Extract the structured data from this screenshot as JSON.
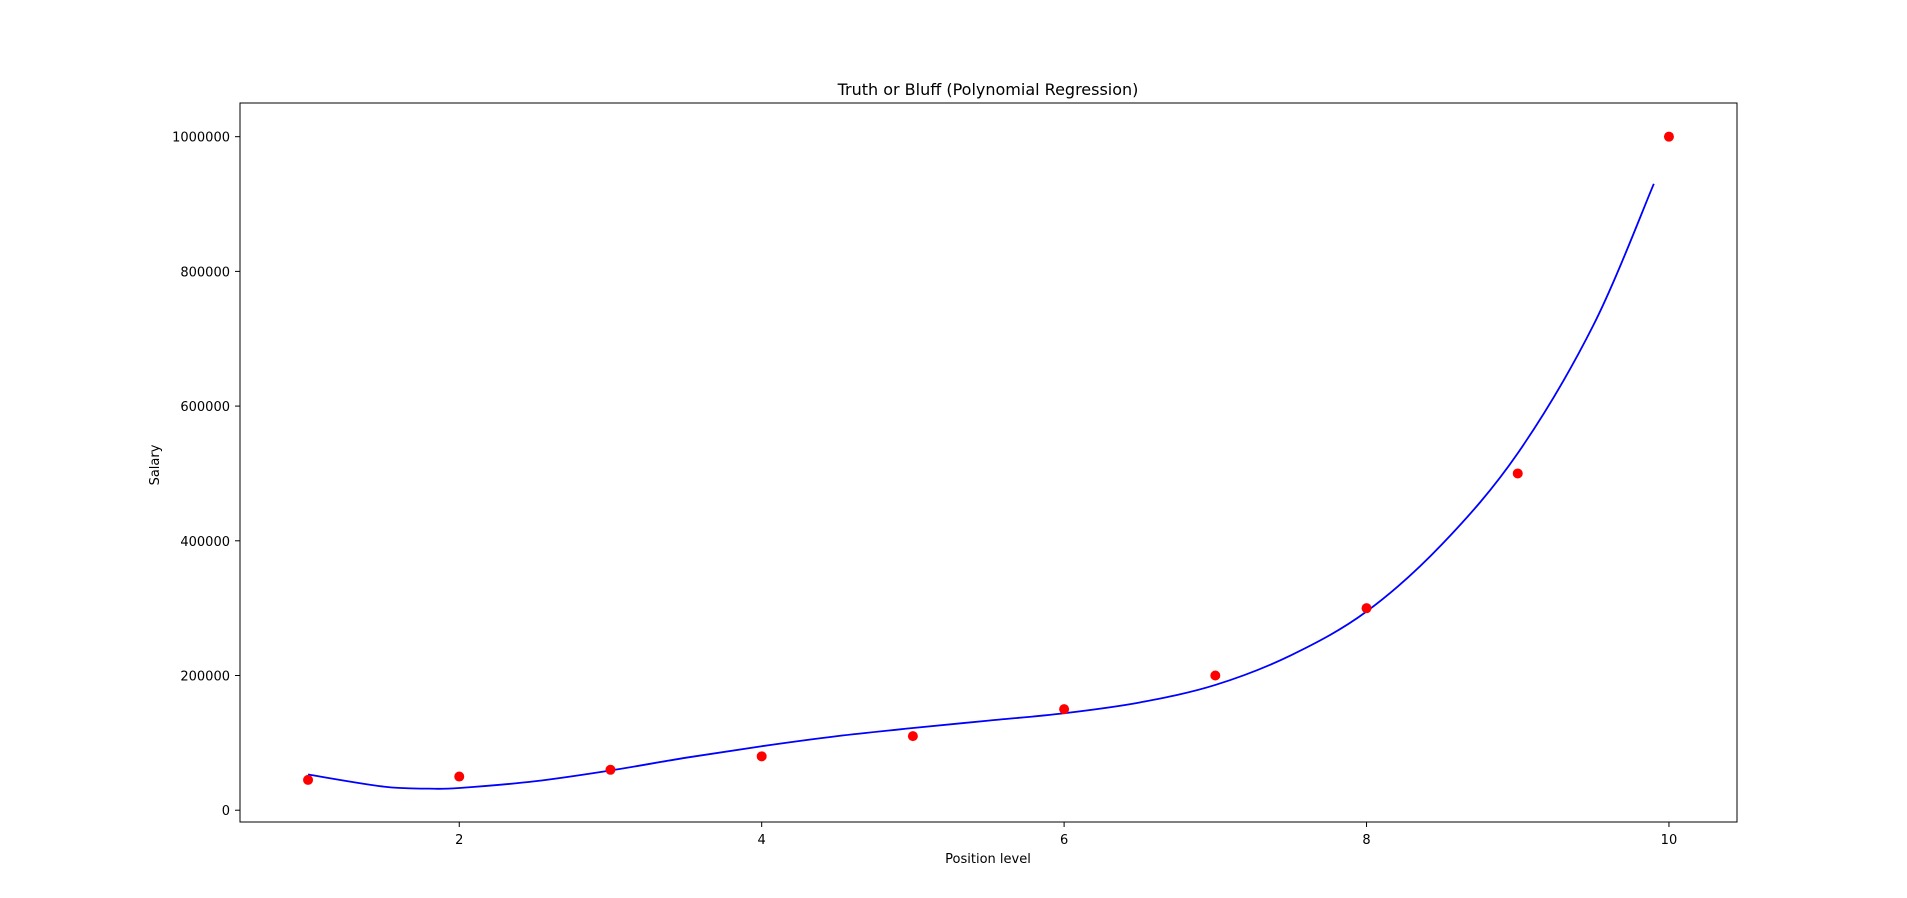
{
  "chart_data": {
    "type": "scatter",
    "title": "Truth or Bluff (Polynomial Regression)",
    "xlabel": "Position level",
    "ylabel": "Salary",
    "xlim": [
      0.55,
      10.45
    ],
    "ylim": [
      -17500,
      1050000
    ],
    "x_ticks": [
      2,
      4,
      6,
      8,
      10
    ],
    "y_ticks": [
      0,
      200000,
      400000,
      600000,
      800000,
      1000000
    ],
    "grid": false,
    "legend": "none",
    "series": [
      {
        "kind": "scatter",
        "color": "#ff0000",
        "x": [
          1,
          2,
          3,
          4,
          5,
          6,
          7,
          8,
          9,
          10
        ],
        "y": [
          45000,
          50000,
          60000,
          80000,
          110000,
          150000,
          200000,
          300000,
          500000,
          1000000
        ]
      },
      {
        "kind": "line",
        "color": "#0000ff",
        "x": [
          1.0,
          1.5,
          1.8,
          2.0,
          2.5,
          3.0,
          3.5,
          4.0,
          4.5,
          5.0,
          5.5,
          6.0,
          6.5,
          7.0,
          7.5,
          8.0,
          8.5,
          9.0,
          9.5,
          9.9
        ],
        "y": [
          53000,
          35000,
          32000,
          33000,
          43000,
          59000,
          78000,
          95000,
          110000,
          122000,
          133000,
          144000,
          160000,
          186000,
          230000,
          295000,
          395000,
          530000,
          720000,
          930000
        ]
      }
    ]
  }
}
